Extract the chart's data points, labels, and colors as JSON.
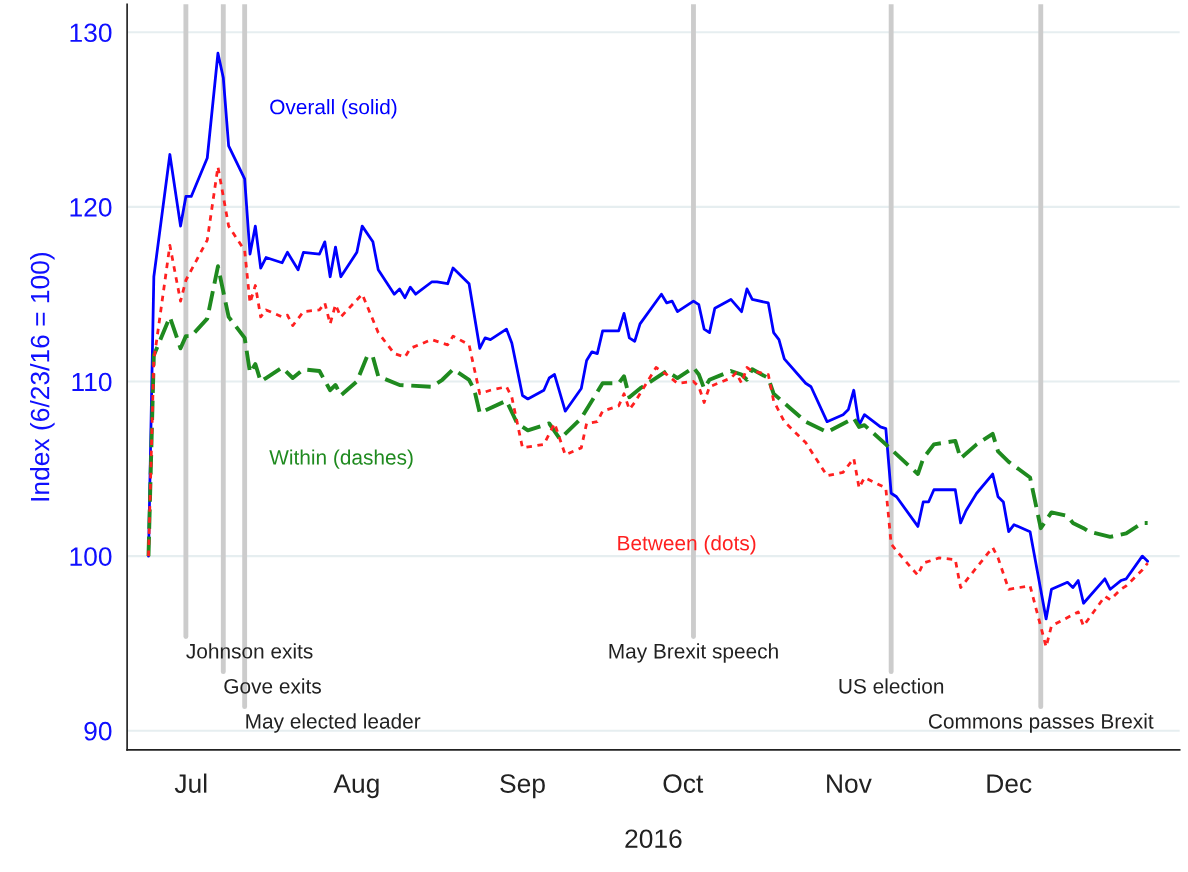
{
  "chart_data": {
    "type": "line",
    "xlabel": "2016",
    "ylabel": "Index (6/23/16 = 100)",
    "xlim": [
      "2016-06-19",
      "2017-01-02"
    ],
    "ylim": [
      88.9,
      131.6
    ],
    "xticks": [
      {
        "value": "2016-07-01",
        "label": "Jul"
      },
      {
        "value": "2016-08-01",
        "label": "Aug"
      },
      {
        "value": "2016-09-01",
        "label": "Sep"
      },
      {
        "value": "2016-10-01",
        "label": "Oct"
      },
      {
        "value": "2016-11-01",
        "label": "Nov"
      },
      {
        "value": "2016-12-01",
        "label": "Dec"
      }
    ],
    "yticks": [
      90,
      100,
      110,
      120,
      130
    ],
    "grid": "y",
    "legend": false,
    "marker": "none",
    "series": [
      {
        "name": "Overall (solid)",
        "color": "#0000ff",
        "line_style": "solid",
        "x": [
          "2016-06-23",
          "2016-06-24",
          "2016-06-27",
          "2016-06-29",
          "2016-06-30",
          "2016-07-01",
          "2016-07-04",
          "2016-07-06",
          "2016-07-07",
          "2016-07-08",
          "2016-07-11",
          "2016-07-12",
          "2016-07-13",
          "2016-07-14",
          "2016-07-15",
          "2016-07-18",
          "2016-07-19",
          "2016-07-21",
          "2016-07-22",
          "2016-07-25",
          "2016-07-26",
          "2016-07-27",
          "2016-07-28",
          "2016-07-29",
          "2016-08-01",
          "2016-08-02",
          "2016-08-04",
          "2016-08-05",
          "2016-08-08",
          "2016-08-09",
          "2016-08-10",
          "2016-08-11",
          "2016-08-12",
          "2016-08-15",
          "2016-08-16",
          "2016-08-18",
          "2016-08-19",
          "2016-08-22",
          "2016-08-24",
          "2016-08-25",
          "2016-08-26",
          "2016-08-29",
          "2016-08-30",
          "2016-09-01",
          "2016-09-02",
          "2016-09-05",
          "2016-09-06",
          "2016-09-07",
          "2016-09-09",
          "2016-09-12",
          "2016-09-13",
          "2016-09-14",
          "2016-09-15",
          "2016-09-16",
          "2016-09-19",
          "2016-09-20",
          "2016-09-21",
          "2016-09-22",
          "2016-09-23",
          "2016-09-27",
          "2016-09-28",
          "2016-09-29",
          "2016-09-30",
          "2016-10-03",
          "2016-10-04",
          "2016-10-05",
          "2016-10-06",
          "2016-10-07",
          "2016-10-10",
          "2016-10-12",
          "2016-10-13",
          "2016-10-14",
          "2016-10-17",
          "2016-10-18",
          "2016-10-19",
          "2016-10-20",
          "2016-10-24",
          "2016-10-25",
          "2016-10-28",
          "2016-10-31",
          "2016-11-01",
          "2016-11-02",
          "2016-11-03",
          "2016-11-04",
          "2016-11-07",
          "2016-11-08",
          "2016-11-09",
          "2016-11-10",
          "2016-11-14",
          "2016-11-15",
          "2016-11-16",
          "2016-11-17",
          "2016-11-21",
          "2016-11-22",
          "2016-11-23",
          "2016-11-25",
          "2016-11-28",
          "2016-11-29",
          "2016-11-30",
          "2016-12-01",
          "2016-12-02",
          "2016-12-05",
          "2016-12-08",
          "2016-12-09",
          "2016-12-12",
          "2016-12-13",
          "2016-12-14",
          "2016-12-15",
          "2016-12-19",
          "2016-12-20",
          "2016-12-22",
          "2016-12-23",
          "2016-12-26",
          "2016-12-27"
        ],
        "values": [
          100,
          116.0,
          123.0,
          118.9,
          120.6,
          120.6,
          122.8,
          128.8,
          127.4,
          123.5,
          121.6,
          117.3,
          118.9,
          116.5,
          117.1,
          116.8,
          117.4,
          116.4,
          117.4,
          117.3,
          118.0,
          116.0,
          117.7,
          116.0,
          117.4,
          118.9,
          118.0,
          116.4,
          115.0,
          115.3,
          114.8,
          115.4,
          115.0,
          115.7,
          115.7,
          115.6,
          116.5,
          115.6,
          111.9,
          112.5,
          112.4,
          113.0,
          112.2,
          109.2,
          109.0,
          109.5,
          110.2,
          110.4,
          108.3,
          109.6,
          111.2,
          111.7,
          111.6,
          112.9,
          112.9,
          113.9,
          112.5,
          112.3,
          113.3,
          115.0,
          114.5,
          114.6,
          114.0,
          114.6,
          114.4,
          113.0,
          112.8,
          114.2,
          114.7,
          114.0,
          115.3,
          114.7,
          114.5,
          112.8,
          112.4,
          111.3,
          109.9,
          109.7,
          107.7,
          108.1,
          108.4,
          109.5,
          107.5,
          108.1,
          107.4,
          107.3,
          103.6,
          103.4,
          101.7,
          103.1,
          103.1,
          103.8,
          103.8,
          101.9,
          102.6,
          103.6,
          104.7,
          103.4,
          103.1,
          101.4,
          101.8,
          101.4,
          96.4,
          98.1,
          98.5,
          98.2,
          98.6,
          97.3,
          98.7,
          98.1,
          98.6,
          98.7,
          100.0,
          99.7
        ]
      },
      {
        "name": "Within (dashes)",
        "color": "#1f8a1f",
        "line_style": "dashed",
        "x": [
          "2016-06-23",
          "2016-06-24",
          "2016-06-27",
          "2016-06-29",
          "2016-06-30",
          "2016-07-01",
          "2016-07-04",
          "2016-07-06",
          "2016-07-08",
          "2016-07-11",
          "2016-07-12",
          "2016-07-13",
          "2016-07-14",
          "2016-07-15",
          "2016-07-18",
          "2016-07-20",
          "2016-07-22",
          "2016-07-25",
          "2016-07-27",
          "2016-07-28",
          "2016-07-29",
          "2016-08-01",
          "2016-08-03",
          "2016-08-04",
          "2016-08-05",
          "2016-08-09",
          "2016-08-15",
          "2016-08-17",
          "2016-08-19",
          "2016-08-22",
          "2016-08-23",
          "2016-08-24",
          "2016-08-29",
          "2016-08-31",
          "2016-09-02",
          "2016-09-06",
          "2016-09-08",
          "2016-09-12",
          "2016-09-16",
          "2016-09-19",
          "2016-09-20",
          "2016-09-21",
          "2016-09-23",
          "2016-09-28",
          "2016-09-30",
          "2016-10-03",
          "2016-10-04",
          "2016-10-05",
          "2016-10-06",
          "2016-10-10",
          "2016-10-12",
          "2016-10-13",
          "2016-10-14",
          "2016-10-17",
          "2016-10-18",
          "2016-10-21",
          "2016-10-24",
          "2016-10-28",
          "2016-11-02",
          "2016-11-03",
          "2016-11-04",
          "2016-11-08",
          "2016-11-14",
          "2016-11-15",
          "2016-11-17",
          "2016-11-21",
          "2016-11-22",
          "2016-11-25",
          "2016-11-28",
          "2016-11-29",
          "2016-12-01",
          "2016-12-05",
          "2016-12-07",
          "2016-12-09",
          "2016-12-12",
          "2016-12-13",
          "2016-12-15",
          "2016-12-16",
          "2016-12-20",
          "2016-12-23",
          "2016-12-26",
          "2016-12-27"
        ],
        "values": [
          100,
          111.5,
          113.7,
          111.9,
          112.6,
          112.6,
          113.6,
          116.6,
          113.7,
          112.5,
          110.5,
          111.0,
          110.0,
          110.2,
          110.8,
          110.2,
          110.7,
          110.6,
          109.5,
          109.8,
          109.2,
          110.0,
          111.5,
          111.4,
          110.3,
          109.8,
          109.7,
          110.1,
          110.7,
          110.1,
          109.5,
          108.2,
          108.9,
          107.6,
          107.2,
          107.6,
          106.7,
          107.9,
          109.9,
          109.9,
          110.3,
          109.1,
          109.6,
          110.6,
          110.2,
          110.8,
          110.4,
          109.6,
          110.1,
          110.6,
          110.4,
          110.1,
          110.7,
          110.2,
          109.3,
          108.5,
          107.7,
          107.1,
          107.9,
          107.4,
          107.5,
          106.4,
          104.7,
          105.6,
          106.4,
          106.6,
          105.6,
          106.4,
          107.0,
          106.0,
          105.4,
          104.5,
          101.6,
          102.5,
          102.3,
          101.9,
          101.6,
          101.4,
          101.1,
          101.3,
          101.9,
          101.9
        ]
      },
      {
        "name": "Between (dots)",
        "color": "#ff2020",
        "line_style": "dotted",
        "x": [
          "2016-06-23",
          "2016-06-24",
          "2016-06-27",
          "2016-06-29",
          "2016-06-30",
          "2016-07-04",
          "2016-07-06",
          "2016-07-08",
          "2016-07-11",
          "2016-07-12",
          "2016-07-13",
          "2016-07-14",
          "2016-07-15",
          "2016-07-18",
          "2016-07-19",
          "2016-07-20",
          "2016-07-22",
          "2016-07-25",
          "2016-07-26",
          "2016-07-27",
          "2016-07-28",
          "2016-07-29",
          "2016-08-02",
          "2016-08-05",
          "2016-08-08",
          "2016-08-10",
          "2016-08-11",
          "2016-08-15",
          "2016-08-18",
          "2016-08-19",
          "2016-08-22",
          "2016-08-24",
          "2016-08-26",
          "2016-08-29",
          "2016-08-30",
          "2016-09-01",
          "2016-09-05",
          "2016-09-07",
          "2016-09-09",
          "2016-09-12",
          "2016-09-13",
          "2016-09-15",
          "2016-09-16",
          "2016-09-19",
          "2016-09-20",
          "2016-09-21",
          "2016-09-22",
          "2016-09-26",
          "2016-09-28",
          "2016-09-30",
          "2016-10-03",
          "2016-10-04",
          "2016-10-05",
          "2016-10-06",
          "2016-10-10",
          "2016-10-11",
          "2016-10-12",
          "2016-10-13",
          "2016-10-14",
          "2016-10-17",
          "2016-10-18",
          "2016-10-20",
          "2016-10-24",
          "2016-10-28",
          "2016-10-31",
          "2016-11-02",
          "2016-11-03",
          "2016-11-04",
          "2016-11-08",
          "2016-11-09",
          "2016-11-10",
          "2016-11-14",
          "2016-11-15",
          "2016-11-18",
          "2016-11-21",
          "2016-11-22",
          "2016-11-28",
          "2016-11-29",
          "2016-12-01",
          "2016-12-05",
          "2016-12-08",
          "2016-12-09",
          "2016-12-14",
          "2016-12-15",
          "2016-12-19",
          "2016-12-20",
          "2016-12-22",
          "2016-12-23",
          "2016-12-26",
          "2016-12-27"
        ],
        "values": [
          100,
          111.2,
          117.8,
          114.6,
          115.8,
          118.1,
          122.3,
          118.9,
          117.5,
          114.5,
          115.5,
          113.7,
          114.1,
          113.7,
          113.8,
          113.2,
          114.0,
          114.1,
          114.5,
          113.3,
          114.4,
          113.7,
          115.0,
          112.8,
          111.6,
          111.4,
          111.9,
          112.4,
          112.1,
          112.6,
          112.1,
          109.3,
          109.5,
          109.7,
          109.1,
          106.2,
          106.4,
          107.6,
          105.8,
          106.2,
          107.6,
          107.7,
          108.3,
          108.6,
          109.3,
          108.4,
          108.8,
          110.8,
          110.4,
          109.9,
          110.0,
          109.7,
          108.8,
          109.7,
          110.2,
          110.5,
          109.9,
          110.8,
          110.6,
          110.4,
          108.9,
          107.7,
          106.5,
          104.6,
          104.8,
          105.6,
          103.9,
          104.5,
          103.9,
          100.7,
          100.3,
          98.9,
          99.6,
          99.9,
          99.8,
          98.2,
          100.5,
          99.9,
          98.1,
          98.3,
          94.8,
          96.0,
          96.8,
          96.0,
          97.7,
          97.5,
          98.1,
          98.3,
          99.2,
          99.6
        ]
      }
    ],
    "ref_lines": [
      {
        "axis": "x",
        "value": "2016-06-30",
        "label": "Johnson exits",
        "color": "#cccccc"
      },
      {
        "axis": "x",
        "value": "2016-07-07",
        "label": "Gove exits",
        "color": "#cccccc"
      },
      {
        "axis": "x",
        "value": "2016-07-11",
        "label": "May elected leader",
        "color": "#cccccc"
      },
      {
        "axis": "x",
        "value": "2016-10-03",
        "label": "May Brexit speech",
        "color": "#cccccc"
      },
      {
        "axis": "x",
        "value": "2016-11-09",
        "label": "US election",
        "color": "#cccccc"
      },
      {
        "axis": "x",
        "value": "2016-12-07",
        "label": "Commons passes Brexit",
        "color": "#cccccc"
      }
    ]
  }
}
